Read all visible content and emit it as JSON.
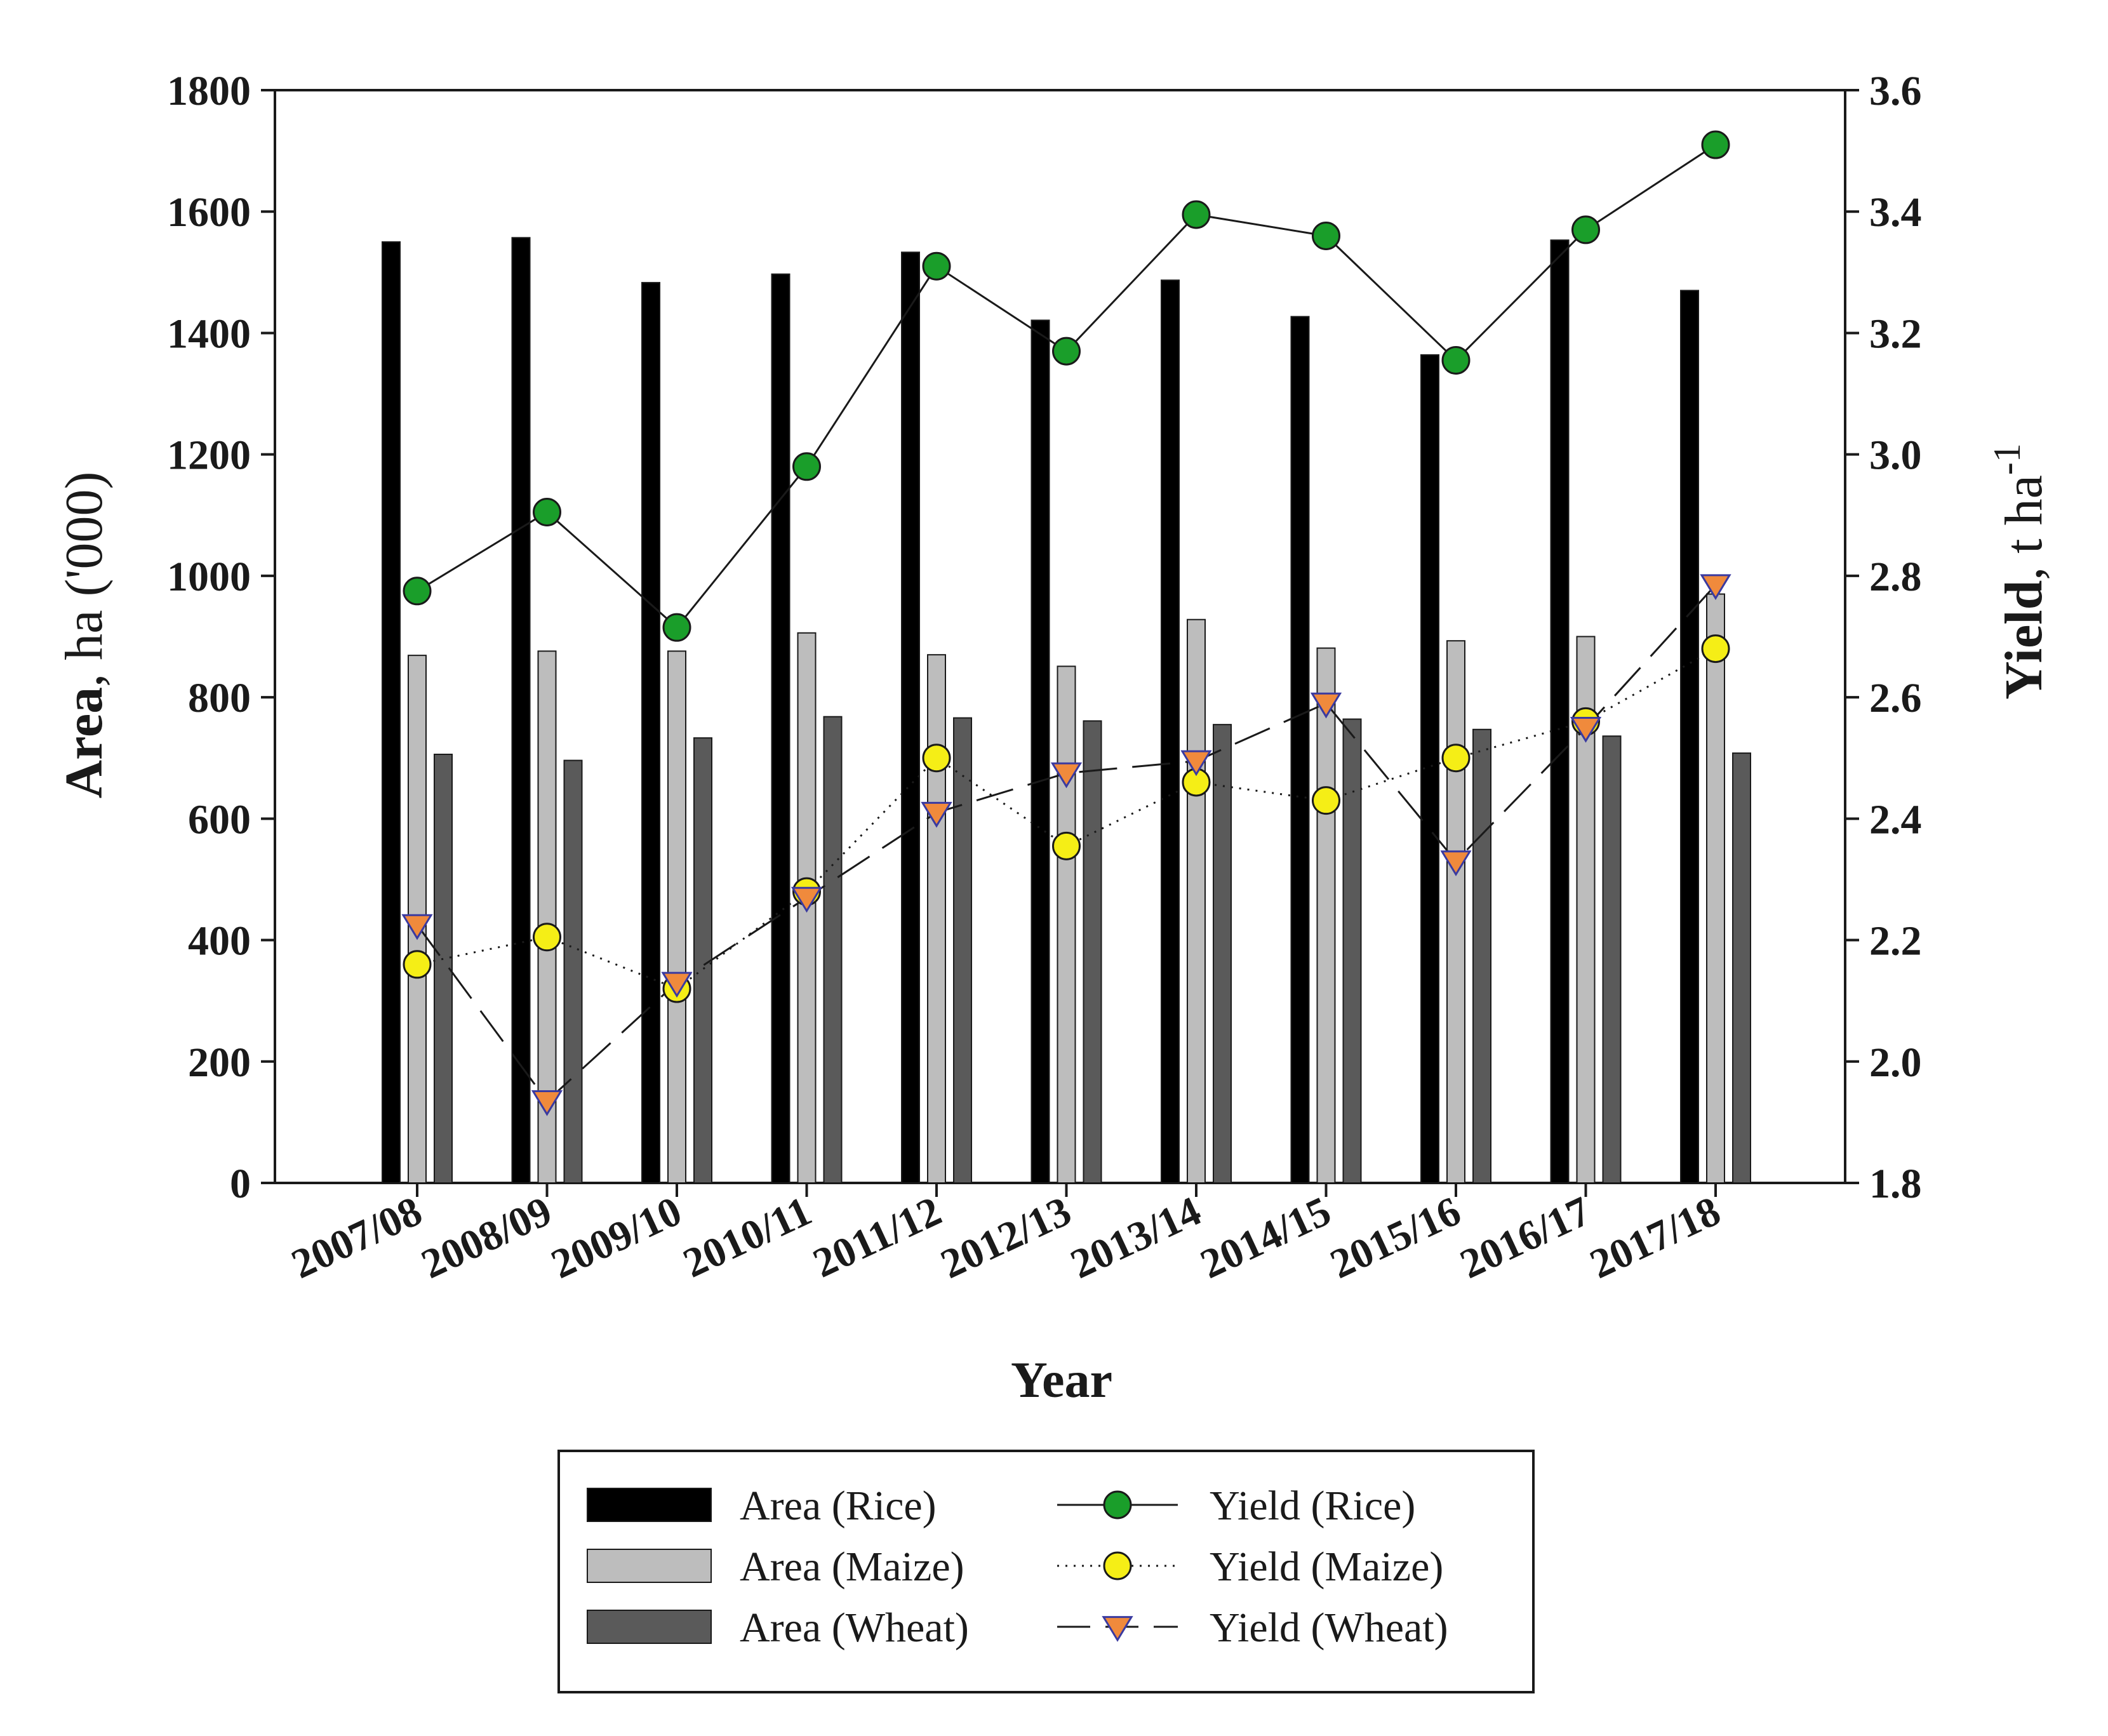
{
  "chart_data": {
    "type": "bar+line",
    "categories": [
      "2007/08",
      "2008/09",
      "2009/10",
      "2010/11",
      "2011/12",
      "2012/13",
      "2013/14",
      "2014/15",
      "2015/16",
      "2016/17",
      "2017/18"
    ],
    "xlabel": "Year",
    "ylabel_left": {
      "bold": "Area",
      "normal": ", ha ('000)"
    },
    "ylabel_right": {
      "bold": "Yield",
      "normal": ", t ha",
      "sup": "-1"
    },
    "ylim_left": [
      0,
      1800
    ],
    "ylim_right": [
      1.8,
      3.6
    ],
    "left_ticks": [
      "0",
      "200",
      "400",
      "600",
      "800",
      "1000",
      "1200",
      "1400",
      "1600",
      "1800"
    ],
    "right_ticks": [
      "1.8",
      "2.0",
      "2.2",
      "2.4",
      "2.6",
      "2.8",
      "3.0",
      "3.2",
      "3.4",
      "3.6"
    ],
    "bar_series": [
      {
        "name": "Area (Rice)",
        "color": "#000000",
        "values": [
          1550,
          1557,
          1483,
          1497,
          1533,
          1421,
          1487,
          1427,
          1364,
          1553,
          1470
        ]
      },
      {
        "name": "Area (Maize)",
        "color": "#bdbdbd",
        "values": [
          869,
          876,
          876,
          906,
          870,
          851,
          928,
          881,
          893,
          900,
          970
        ]
      },
      {
        "name": "Area (Wheat)",
        "color": "#5a5a5a",
        "values": [
          706,
          696,
          733,
          768,
          766,
          761,
          755,
          764,
          747,
          736,
          708
        ]
      }
    ],
    "line_series": [
      {
        "name": "Yield (Rice)",
        "marker": "circle",
        "marker_color": "#1a9e2a",
        "line_style": "solid",
        "values": [
          2.775,
          2.905,
          2.715,
          2.98,
          3.31,
          3.17,
          3.395,
          3.36,
          3.155,
          3.37,
          3.51
        ]
      },
      {
        "name": "Yield (Maize)",
        "marker": "circle",
        "marker_color": "#f5ee16",
        "line_style": "dotted",
        "values": [
          2.16,
          2.205,
          2.12,
          2.28,
          2.5,
          2.355,
          2.46,
          2.43,
          2.5,
          2.56,
          2.68
        ]
      },
      {
        "name": "Yield (Wheat)",
        "marker": "triangle-down",
        "marker_color": "#f08a3c",
        "line_style": "dashed",
        "values": [
          2.225,
          1.935,
          2.13,
          2.27,
          2.41,
          2.475,
          2.495,
          2.59,
          2.33,
          2.55,
          2.785
        ]
      }
    ],
    "legend_position": "bottom-center"
  }
}
